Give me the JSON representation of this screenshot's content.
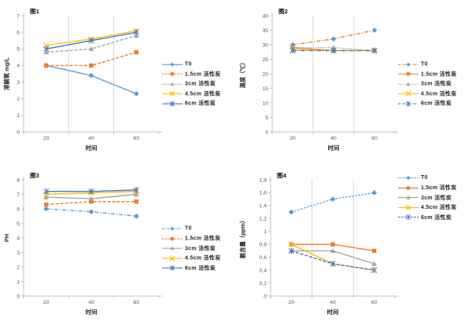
{
  "colors": {
    "light_blue": "#5B9BD5",
    "blue": "#4472C4",
    "orange": "#ED7D31",
    "gray": "#A5A5A5",
    "yellow": "#FFC000",
    "axis_line": "#BFBFBF",
    "gridline": "#D9D9D9",
    "tick_text": "#595959",
    "label_text": "#262626"
  },
  "chart_data": [
    {
      "type": "line",
      "title": "图1",
      "xlabel": "时间",
      "ylabel": "溶解氧 mg/L",
      "categories": [
        "20",
        "40",
        "60"
      ],
      "ylim": [
        0,
        7
      ],
      "ytick_labels": [
        "0",
        "1",
        "2",
        "3",
        "4",
        "5",
        "6",
        "7"
      ],
      "grid": {
        "vertical": true,
        "horizontal": false
      },
      "legend_position": "right-middle",
      "series": [
        {
          "name": "T0",
          "line_color": "#5B9BD5",
          "marker_color": "#5B9BD5",
          "marker": "diamond",
          "dash": "solid",
          "values": [
            4.0,
            3.4,
            2.3
          ]
        },
        {
          "name": "1.5cm 活性炭",
          "line_color": "#ED7D31",
          "marker_color": "#ED7D31",
          "marker": "square",
          "dash": "dashed",
          "values": [
            4.0,
            4.0,
            4.8
          ]
        },
        {
          "name": "3cm 活性炭",
          "line_color": "#A5A5A5",
          "marker_color": "#A5A5A5",
          "marker": "triangle",
          "dash": "dashed",
          "values": [
            4.8,
            5.0,
            5.8
          ]
        },
        {
          "name": "4.5cm 活性炭",
          "line_color": "#FFC000",
          "marker_color": "#FFC000",
          "marker": "x",
          "dash": "solid",
          "values": [
            5.2,
            5.6,
            6.1
          ]
        },
        {
          "name": "6cm 活性炭",
          "line_color": "#4472C4",
          "marker_color": "#4472C4",
          "marker": "asterisk",
          "dash": "solid",
          "values": [
            5.0,
            5.5,
            6.0
          ]
        }
      ]
    },
    {
      "type": "line",
      "title": "图2",
      "xlabel": "时间",
      "ylabel": "温度（℃）",
      "categories": [
        "20",
        "40",
        "60"
      ],
      "ylim": [
        0,
        40
      ],
      "ytick_labels": [
        "0",
        "5",
        "10",
        "15",
        "20",
        "25",
        "30",
        "35",
        "40"
      ],
      "grid": {
        "vertical": true,
        "horizontal": false
      },
      "legend_position": "right-middle",
      "series": [
        {
          "name": "T0",
          "line_color": "#ED7D31",
          "marker_color": "#5B9BD5",
          "marker": "diamond",
          "dash": "dashdot",
          "values": [
            30,
            32,
            35
          ]
        },
        {
          "name": "1.5cm 活性炭",
          "line_color": "#ED7D31",
          "marker_color": "#ED7D31",
          "marker": "square",
          "dash": "solid",
          "values": [
            29,
            28,
            28
          ]
        },
        {
          "name": "3cm 活性炭",
          "line_color": "#A5A5A5",
          "marker_color": "#A5A5A5",
          "marker": "triangle",
          "dash": "dotted",
          "values": [
            29,
            29,
            28
          ]
        },
        {
          "name": "4.5cm 活性炭",
          "line_color": "#FFC000",
          "marker_color": "#FFC000",
          "marker": "x",
          "dash": "solid",
          "values": [
            28.3,
            28,
            28
          ]
        },
        {
          "name": "6cm 活性炭",
          "line_color": "#4472C4",
          "marker_color": "#4472C4",
          "marker": "asterisk",
          "dash": "dashdot",
          "values": [
            28,
            28,
            28
          ]
        }
      ]
    },
    {
      "type": "line",
      "title": "图3",
      "xlabel": "时间",
      "ylabel": "PH",
      "categories": [
        "20",
        "40",
        "60"
      ],
      "ylim": [
        0,
        8
      ],
      "ytick_labels": [
        "0",
        "1",
        "2",
        "3",
        "4",
        "5",
        "6",
        "7",
        "8"
      ],
      "grid": {
        "vertical": false,
        "horizontal": false
      },
      "legend_position": "right-middle",
      "series": [
        {
          "name": "T0",
          "line_color": "#5B9BD5",
          "marker_color": "#5B9BD5",
          "marker": "diamond",
          "dash": "dashdot",
          "values": [
            6.0,
            5.8,
            5.5
          ]
        },
        {
          "name": "1.5cm 活性炭",
          "line_color": "#ED7D31",
          "marker_color": "#ED7D31",
          "marker": "square",
          "dash": "dashed",
          "values": [
            6.3,
            6.5,
            6.5
          ]
        },
        {
          "name": "3cm 活性炭",
          "line_color": "#A5A5A5",
          "marker_color": "#A5A5A5",
          "marker": "triangle",
          "dash": "solid",
          "values": [
            6.8,
            6.7,
            7.0
          ]
        },
        {
          "name": "4.5cm 活性炭",
          "line_color": "#FFC000",
          "marker_color": "#FFC000",
          "marker": "x",
          "dash": "solid",
          "values": [
            7.0,
            7.1,
            7.2
          ]
        },
        {
          "name": "6cm 活性炭",
          "line_color": "#4472C4",
          "marker_color": "#4472C4",
          "marker": "asterisk",
          "dash": "solid",
          "values": [
            7.2,
            7.2,
            7.3
          ]
        }
      ]
    },
    {
      "type": "line",
      "title": "图4",
      "xlabel": "时间",
      "ylabel": "氨含量（ppm）",
      "categories": [
        "20",
        "40",
        "60"
      ],
      "ylim": [
        0,
        1.8
      ],
      "ytick_labels": [
        "0",
        "0,2",
        "0,4",
        "0,6",
        "0,8",
        "1",
        "1,2",
        "1,4",
        "1,6",
        "1,8"
      ],
      "grid": {
        "vertical": true,
        "horizontal": false
      },
      "legend_position": "right-top",
      "series": [
        {
          "name": "T0",
          "line_color": "#5B9BD5",
          "marker_color": "#5B9BD5",
          "marker": "diamond",
          "dash": "shortdash",
          "values": [
            1.3,
            1.5,
            1.6
          ]
        },
        {
          "name": "1.5cm 活性炭",
          "line_color": "#ED7D31",
          "marker_color": "#ED7D31",
          "marker": "square",
          "dash": "solid",
          "values": [
            0.8,
            0.8,
            0.7
          ]
        },
        {
          "name": "3cm 活性炭",
          "line_color": "#A5A5A5",
          "marker_color": "#A5A5A5",
          "marker": "triangle",
          "dash": "solid",
          "values": [
            0.7,
            0.7,
            0.5
          ]
        },
        {
          "name": "4.5cm 活性炭",
          "line_color": "#FFC000",
          "marker_color": "#FFC000",
          "marker": "x",
          "dash": "solid",
          "values": [
            0.8,
            0.5,
            0.4
          ]
        },
        {
          "name": "6cm 活性炭",
          "line_color": "#4472C4",
          "marker_color": "#4472C4",
          "marker": "asterisk",
          "dash": "dashed",
          "values": [
            0.7,
            0.5,
            0.4
          ]
        }
      ]
    }
  ]
}
